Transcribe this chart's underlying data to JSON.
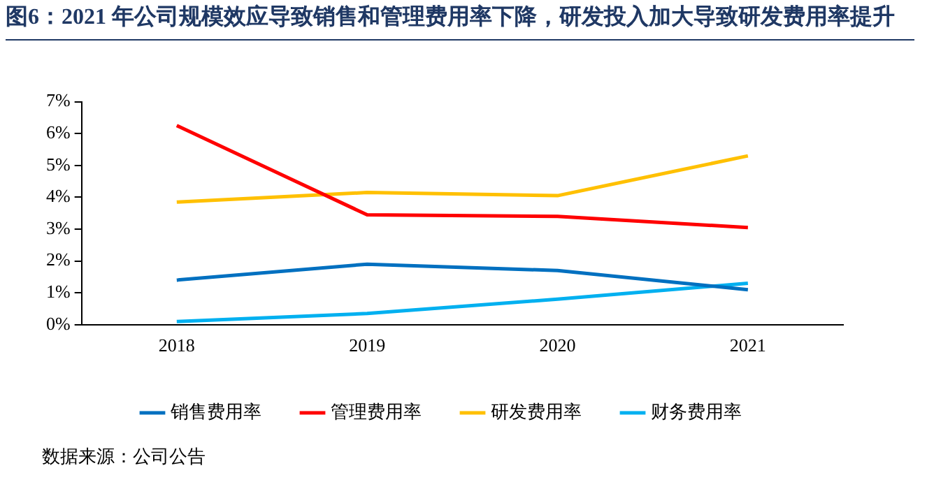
{
  "chart_data": {
    "type": "line",
    "title": "图6：2021 年公司规模效应导致销售和管理费用率下降，研发投入加大导致研发费用率提升",
    "categories": [
      "2018",
      "2019",
      "2020",
      "2021"
    ],
    "series": [
      {
        "name": "销售费用率",
        "color": "#0070c0",
        "values": [
          1.4,
          1.9,
          1.7,
          1.1
        ]
      },
      {
        "name": "管理费用率",
        "color": "#ff0000",
        "values": [
          6.25,
          3.45,
          3.4,
          3.05
        ]
      },
      {
        "name": "研发费用率",
        "color": "#ffc000",
        "values": [
          3.85,
          4.15,
          4.05,
          5.3
        ]
      },
      {
        "name": "财务费用率",
        "color": "#00b0f0",
        "values": [
          0.1,
          0.35,
          0.8,
          1.3
        ]
      }
    ],
    "ylim": [
      0,
      7
    ],
    "yticks": [
      {
        "value": 0,
        "label": "0%"
      },
      {
        "value": 1,
        "label": "1%"
      },
      {
        "value": 2,
        "label": "2%"
      },
      {
        "value": 3,
        "label": "3%"
      },
      {
        "value": 4,
        "label": "4%"
      },
      {
        "value": 5,
        "label": "5%"
      },
      {
        "value": 6,
        "label": "6%"
      },
      {
        "value": 7,
        "label": "7%"
      }
    ],
    "legend": "bottom",
    "grid": false,
    "marker": "none",
    "line_style": "solid",
    "annotations": [
      "数据来源：公司公告"
    ]
  }
}
